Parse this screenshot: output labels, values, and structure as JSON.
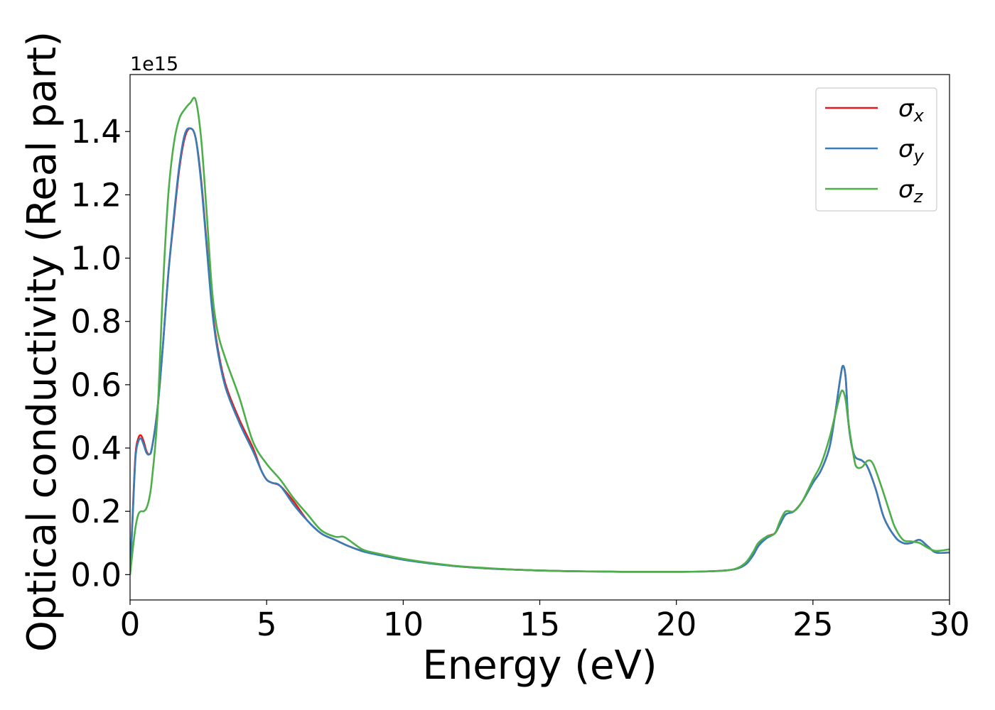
{
  "chart_data": {
    "type": "line",
    "xlabel": "Energy (eV)",
    "ylabel": "Optical conductivity (Real part)",
    "y_offset_text": "1e15",
    "xlim": [
      0,
      30
    ],
    "ylim": [
      -0.08,
      1.58
    ],
    "y_scale_factor": 1000000000000000.0,
    "x_ticks": [
      0,
      5,
      10,
      15,
      20,
      25,
      30
    ],
    "x_tick_labels": [
      "0",
      "5",
      "10",
      "15",
      "20",
      "25",
      "30"
    ],
    "y_ticks": [
      0.0,
      0.2,
      0.4,
      0.6,
      0.8,
      1.0,
      1.2,
      1.4
    ],
    "y_tick_labels": [
      "0.0",
      "0.2",
      "0.4",
      "0.6",
      "0.8",
      "1.0",
      "1.2",
      "1.4"
    ],
    "grid": false,
    "legend_position": "top-right",
    "series": [
      {
        "name": "σx",
        "legend_symbol": "σ",
        "legend_sub": "x",
        "color": "#e41a1c",
        "x": [
          0,
          0.1,
          0.2,
          0.3,
          0.4,
          0.5,
          0.6,
          0.7,
          0.8,
          1.0,
          1.2,
          1.4,
          1.6,
          1.8,
          2.0,
          2.2,
          2.4,
          2.6,
          2.8,
          3.0,
          3.2,
          3.5,
          4.0,
          4.5,
          4.8,
          5.0,
          5.2,
          5.5,
          6.0,
          6.5,
          7.0,
          7.5,
          8.0,
          8.5,
          9.0,
          10.0,
          11.0,
          12.0,
          13.0,
          14.0,
          15.0,
          16.0,
          17.0,
          18.0,
          19.0,
          20.0,
          21.0,
          22.0,
          22.5,
          22.8,
          23.0,
          23.3,
          23.6,
          23.8,
          24.0,
          24.3,
          24.6,
          25.0,
          25.3,
          25.6,
          25.8,
          26.0,
          26.1,
          26.2,
          26.3,
          26.5,
          26.8,
          27.0,
          27.3,
          27.6,
          28.0,
          28.3,
          28.6,
          28.9,
          29.2,
          29.5,
          30.0
        ],
        "y": [
          0.0,
          0.2,
          0.38,
          0.43,
          0.44,
          0.42,
          0.39,
          0.38,
          0.4,
          0.52,
          0.72,
          0.95,
          1.12,
          1.28,
          1.38,
          1.41,
          1.38,
          1.25,
          1.05,
          0.85,
          0.72,
          0.6,
          0.49,
          0.4,
          0.33,
          0.3,
          0.29,
          0.28,
          0.23,
          0.17,
          0.13,
          0.11,
          0.09,
          0.075,
          0.065,
          0.048,
          0.036,
          0.026,
          0.02,
          0.016,
          0.013,
          0.011,
          0.01,
          0.009,
          0.009,
          0.009,
          0.01,
          0.015,
          0.03,
          0.06,
          0.09,
          0.12,
          0.13,
          0.16,
          0.19,
          0.2,
          0.23,
          0.29,
          0.33,
          0.4,
          0.5,
          0.62,
          0.66,
          0.62,
          0.48,
          0.38,
          0.36,
          0.34,
          0.27,
          0.18,
          0.12,
          0.1,
          0.1,
          0.11,
          0.09,
          0.07,
          0.07
        ]
      },
      {
        "name": "σy",
        "legend_symbol": "σ",
        "legend_sub": "y",
        "color": "#377eb8",
        "x": [
          0,
          0.1,
          0.2,
          0.3,
          0.4,
          0.5,
          0.6,
          0.7,
          0.8,
          1.0,
          1.2,
          1.4,
          1.6,
          1.8,
          2.0,
          2.2,
          2.4,
          2.6,
          2.8,
          3.0,
          3.2,
          3.5,
          4.0,
          4.5,
          4.8,
          5.0,
          5.2,
          5.5,
          6.0,
          6.5,
          7.0,
          7.5,
          8.0,
          8.5,
          9.0,
          10.0,
          11.0,
          12.0,
          13.0,
          14.0,
          15.0,
          16.0,
          17.0,
          18.0,
          19.0,
          20.0,
          21.0,
          22.0,
          22.5,
          22.8,
          23.0,
          23.3,
          23.6,
          23.8,
          24.0,
          24.3,
          24.6,
          25.0,
          25.3,
          25.6,
          25.8,
          26.0,
          26.1,
          26.2,
          26.3,
          26.5,
          26.8,
          27.0,
          27.3,
          27.6,
          28.0,
          28.3,
          28.6,
          28.9,
          29.2,
          29.5,
          30.0
        ],
        "y": [
          0.0,
          0.19,
          0.37,
          0.42,
          0.43,
          0.41,
          0.385,
          0.38,
          0.4,
          0.52,
          0.72,
          0.95,
          1.13,
          1.29,
          1.39,
          1.41,
          1.38,
          1.24,
          1.04,
          0.84,
          0.71,
          0.59,
          0.48,
          0.39,
          0.33,
          0.3,
          0.29,
          0.28,
          0.22,
          0.17,
          0.13,
          0.11,
          0.09,
          0.074,
          0.064,
          0.047,
          0.035,
          0.026,
          0.02,
          0.016,
          0.013,
          0.011,
          0.01,
          0.009,
          0.009,
          0.009,
          0.01,
          0.015,
          0.03,
          0.06,
          0.09,
          0.115,
          0.13,
          0.16,
          0.19,
          0.2,
          0.23,
          0.29,
          0.33,
          0.4,
          0.5,
          0.62,
          0.66,
          0.62,
          0.48,
          0.38,
          0.36,
          0.34,
          0.27,
          0.18,
          0.12,
          0.1,
          0.1,
          0.11,
          0.09,
          0.07,
          0.07
        ]
      },
      {
        "name": "σz",
        "legend_symbol": "σ",
        "legend_sub": "z",
        "color": "#4daf4a",
        "x": [
          0,
          0.1,
          0.2,
          0.3,
          0.4,
          0.5,
          0.6,
          0.7,
          0.8,
          1.0,
          1.2,
          1.4,
          1.6,
          1.8,
          2.0,
          2.2,
          2.4,
          2.6,
          2.8,
          3.0,
          3.2,
          3.5,
          4.0,
          4.5,
          5.0,
          5.5,
          6.0,
          6.5,
          7.0,
          7.5,
          7.8,
          8.0,
          8.5,
          9.0,
          10.0,
          11.0,
          12.0,
          13.0,
          14.0,
          15.0,
          16.0,
          17.0,
          18.0,
          19.0,
          20.0,
          21.0,
          22.0,
          22.5,
          22.8,
          23.0,
          23.3,
          23.6,
          23.8,
          24.0,
          24.3,
          24.6,
          25.0,
          25.3,
          25.6,
          25.8,
          26.0,
          26.1,
          26.2,
          26.3,
          26.5,
          26.6,
          26.8,
          27.0,
          27.2,
          27.5,
          27.8,
          28.0,
          28.3,
          28.6,
          28.9,
          29.2,
          29.5,
          30.0
        ],
        "y": [
          0.0,
          0.08,
          0.15,
          0.19,
          0.2,
          0.2,
          0.21,
          0.24,
          0.3,
          0.5,
          0.9,
          1.2,
          1.36,
          1.44,
          1.47,
          1.49,
          1.5,
          1.38,
          1.15,
          0.9,
          0.77,
          0.68,
          0.56,
          0.42,
          0.35,
          0.3,
          0.24,
          0.19,
          0.14,
          0.12,
          0.12,
          0.11,
          0.08,
          0.068,
          0.05,
          0.037,
          0.027,
          0.021,
          0.016,
          0.013,
          0.011,
          0.01,
          0.009,
          0.009,
          0.009,
          0.01,
          0.015,
          0.035,
          0.07,
          0.1,
          0.12,
          0.13,
          0.17,
          0.2,
          0.2,
          0.23,
          0.3,
          0.35,
          0.43,
          0.5,
          0.57,
          0.58,
          0.55,
          0.48,
          0.37,
          0.34,
          0.34,
          0.36,
          0.35,
          0.28,
          0.2,
          0.15,
          0.11,
          0.105,
          0.1,
          0.085,
          0.075,
          0.08
        ]
      }
    ]
  }
}
